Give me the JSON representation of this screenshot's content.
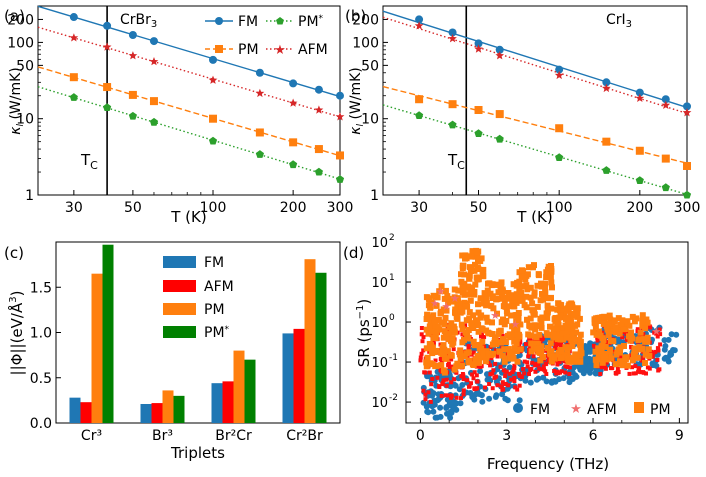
{
  "colors": {
    "FM": "#1f77b4",
    "AFM": "#d62728",
    "PM": "#ff7f0e",
    "PMstar": "#2ca02c",
    "barAFM": "#ff0000",
    "barPMstar": "#008000"
  },
  "chart_data": [
    {
      "panel_label": "(a)",
      "type": "line",
      "title": "CrBr3",
      "xlabel": "T (K)",
      "ylabel": "κl (W/mK)",
      "xscale": "log",
      "yscale": "log",
      "xlim": [
        22,
        300
      ],
      "ylim": [
        1,
        300
      ],
      "xticks": [
        30,
        50,
        100,
        200,
        300
      ],
      "yticks": [
        1,
        10,
        50,
        100,
        200
      ],
      "vline": {
        "x": 40,
        "label": "TC"
      },
      "series": [
        {
          "name": "FM",
          "style": "solid",
          "marker": "circle",
          "x": [
            30,
            40,
            50,
            60,
            100,
            150,
            200,
            250,
            300
          ],
          "y": [
            215,
            165,
            125,
            104,
            59,
            40,
            29,
            24,
            20
          ]
        },
        {
          "name": "AFM",
          "style": "dotted",
          "marker": "star",
          "x": [
            30,
            40,
            50,
            60,
            100,
            150,
            200,
            250,
            300
          ],
          "y": [
            115,
            87,
            67,
            56,
            32,
            21.5,
            16,
            13,
            10.6
          ]
        },
        {
          "name": "PM",
          "style": "dashed",
          "marker": "square",
          "x": [
            30,
            40,
            50,
            60,
            100,
            150,
            200,
            250,
            300
          ],
          "y": [
            35,
            26,
            20.5,
            17,
            10,
            6.6,
            4.9,
            4,
            3.3
          ]
        },
        {
          "name": "PM*",
          "style": "dotted",
          "marker": "pentagon",
          "x": [
            30,
            40,
            50,
            60,
            100,
            150,
            200,
            250,
            300
          ],
          "y": [
            19,
            14,
            10.8,
            9,
            5.1,
            3.4,
            2.5,
            2,
            1.6
          ]
        }
      ],
      "legend": [
        "FM",
        "PM*",
        "PM",
        "AFM"
      ]
    },
    {
      "panel_label": "(b)",
      "type": "line",
      "title": "CrI3",
      "xlabel": "T (K)",
      "ylabel": "κl (W/mK)",
      "xscale": "log",
      "yscale": "log",
      "xlim": [
        22,
        300
      ],
      "ylim": [
        1,
        300
      ],
      "xticks": [
        30,
        50,
        100,
        200,
        300
      ],
      "yticks": [
        1,
        10,
        50,
        100,
        200
      ],
      "vline": {
        "x": 45,
        "label": "TC"
      },
      "series": [
        {
          "name": "FM",
          "style": "solid",
          "marker": "circle",
          "x": [
            30,
            40,
            50,
            60,
            100,
            150,
            200,
            250,
            300
          ],
          "y": [
            200,
            135,
            97,
            80,
            44,
            30,
            22,
            18,
            14.5
          ]
        },
        {
          "name": "AFM",
          "style": "dotted",
          "marker": "star",
          "x": [
            30,
            40,
            50,
            60,
            100,
            150,
            200,
            250,
            300
          ],
          "y": [
            165,
            112,
            82,
            67,
            37,
            25,
            18.5,
            15,
            12
          ]
        },
        {
          "name": "PM",
          "style": "dashed",
          "marker": "square",
          "x": [
            30,
            40,
            50,
            60,
            100,
            150,
            200,
            250,
            300
          ],
          "y": [
            18,
            15.5,
            13,
            11.5,
            7.5,
            5,
            3.8,
            3,
            2.4
          ]
        },
        {
          "name": "PM*",
          "style": "dotted",
          "marker": "pentagon",
          "x": [
            30,
            40,
            50,
            60,
            100,
            150,
            200,
            250,
            300
          ],
          "y": [
            11,
            8.3,
            6.4,
            5.4,
            3.1,
            2.1,
            1.55,
            1.25,
            1.0
          ]
        }
      ]
    },
    {
      "panel_label": "(c)",
      "type": "bar",
      "xlabel": "Triplets",
      "ylabel": "||Φ||(eV/Å³)",
      "ylim": [
        0,
        2.0
      ],
      "yticks": [
        0.0,
        0.5,
        1.0,
        1.5
      ],
      "categories": [
        "Cr³",
        "Br³",
        "Br²Cr",
        "Cr²Br"
      ],
      "series": [
        {
          "name": "FM",
          "values": [
            0.28,
            0.21,
            0.44,
            0.99
          ]
        },
        {
          "name": "AFM",
          "values": [
            0.23,
            0.22,
            0.46,
            1.04
          ]
        },
        {
          "name": "PM",
          "values": [
            1.65,
            0.36,
            0.8,
            1.81
          ]
        },
        {
          "name": "PM*",
          "values": [
            1.97,
            0.3,
            0.7,
            1.66
          ]
        }
      ]
    },
    {
      "panel_label": "(d)",
      "type": "scatter",
      "xlabel": "Frequency (THz)",
      "ylabel": "SR (ps⁻¹)",
      "yscale": "log",
      "xlim": [
        -0.5,
        9.3
      ],
      "ylim": [
        0.003,
        100
      ],
      "xticks": [
        0,
        3,
        6,
        9
      ],
      "yticks": [
        0.01,
        0.1,
        1,
        10,
        100
      ],
      "series": [
        {
          "name": "FM",
          "marker": "circle",
          "note": "dense"
        },
        {
          "name": "AFM",
          "marker": "star",
          "note": "dense"
        },
        {
          "name": "PM",
          "marker": "square",
          "note": "dense"
        }
      ]
    }
  ]
}
